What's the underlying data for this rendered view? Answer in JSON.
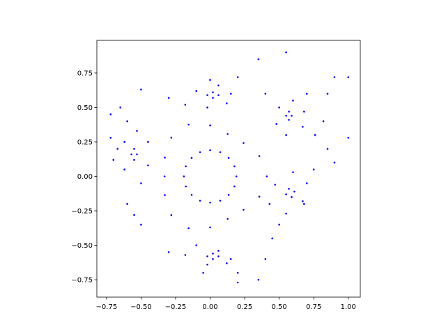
{
  "chart_data": {
    "type": "scatter",
    "color": "#0000ff",
    "x": [
      0.19,
      0.176,
      0.134,
      0.073,
      0,
      -0.073,
      -0.134,
      -0.176,
      -0.19,
      -0.176,
      -0.134,
      -0.073,
      0,
      0.073,
      0.134,
      0.176,
      0.41,
      0.356,
      0.242,
      0.127,
      0,
      -0.156,
      -0.281,
      -0.328,
      -0.33,
      -0.328,
      -0.281,
      -0.156,
      0,
      0.127,
      0.242,
      0.356,
      0.06,
      0.02,
      -0.02,
      0.02,
      0.59,
      0.57,
      0.55,
      0.57,
      0.61,
      0.57,
      0.55,
      0.59,
      0.06,
      0.02,
      -0.02,
      0.02,
      -0.53,
      -0.55,
      -0.57,
      -0.55,
      0.15,
      0.06,
      -0.1,
      -0.18,
      -0.02,
      0.12,
      0.68,
      0.6,
      0.5,
      0.48,
      0.55,
      0.67,
      0.7,
      0.6,
      0.47,
      0.43,
      0.55,
      0.67,
      0.15,
      0.06,
      -0.1,
      -0.18,
      -0.02,
      0.12,
      -0.45,
      -0.53,
      -0.62,
      -0.62,
      -0.5,
      -0.45,
      0.2,
      0.4,
      0.7,
      0.76,
      0.75,
      0.68,
      0.45,
      0.2,
      -0.05,
      -0.3,
      -0.6,
      -0.67,
      -0.6,
      -0.3,
      0.0,
      0.55,
      0.35,
      0.9,
      1.0,
      0.85,
      0.82,
      0.85,
      1.0,
      0.9,
      -0.72,
      -0.65,
      -0.5,
      -0.72,
      -0.7,
      0.5,
      0.4,
      0.35,
      0.2,
      -0.5,
      -0.55
    ],
    "y": [
      0,
      0.073,
      0.134,
      0.176,
      0.19,
      0.176,
      0.134,
      0.073,
      0,
      -0.073,
      -0.134,
      -0.176,
      -0.19,
      -0.176,
      -0.134,
      -0.073,
      0,
      0.147,
      0.242,
      0.308,
      0.37,
      0.376,
      0.281,
      0.136,
      0,
      -0.136,
      -0.281,
      -0.376,
      -0.37,
      -0.308,
      -0.242,
      -0.147,
      0.59,
      0.61,
      0.59,
      0.57,
      0.44,
      0.47,
      0.44,
      0.41,
      -0.11,
      -0.09,
      -0.13,
      -0.15,
      -0.58,
      -0.56,
      -0.58,
      -0.6,
      0.16,
      0.2,
      0.16,
      0.12,
      0.6,
      0.66,
      0.62,
      0.52,
      0.5,
      0.53,
      0.47,
      0.55,
      0.5,
      0.38,
      0.3,
      0.36,
      -0.05,
      0.03,
      -0.06,
      -0.2,
      -0.27,
      -0.18,
      -0.6,
      -0.54,
      -0.5,
      -0.57,
      -0.64,
      -0.63,
      0.25,
      0.33,
      0.25,
      0.05,
      -0.05,
      0.08,
      0.72,
      0.6,
      0.6,
      0.3,
      0.05,
      -0.2,
      -0.45,
      -0.7,
      -0.7,
      -0.55,
      -0.2,
      0.2,
      0.4,
      0.57,
      0.7,
      0.9,
      0.85,
      0.72,
      0.72,
      0.6,
      0.4,
      0.2,
      0.28,
      0.1,
      0.45,
      0.5,
      0.63,
      0.28,
      0.12,
      -0.35,
      -0.6,
      -0.75,
      -0.77,
      -0.35,
      -0.28
    ],
    "xlim": [
      -0.82,
      1.087
    ],
    "ylim": [
      -0.876,
      0.987
    ],
    "xticks": [
      {
        "value": -0.75,
        "label": "−0.75"
      },
      {
        "value": -0.5,
        "label": "−0.50"
      },
      {
        "value": -0.25,
        "label": "−0.25"
      },
      {
        "value": 0,
        "label": "0.00"
      },
      0.25,
      {
        "value": 0.5,
        "label": "0.50"
      },
      0.75,
      {
        "value": 1,
        "label": "1.00"
      }
    ],
    "yticks": [
      {
        "value": -0.75,
        "label": "−0.75"
      },
      {
        "value": -0.5,
        "label": "−0.50"
      },
      {
        "value": -0.25,
        "label": "−0.25"
      },
      {
        "value": 0,
        "label": "0.00"
      },
      0.25,
      {
        "value": 0.5,
        "label": "0.50"
      },
      0.75
    ]
  }
}
